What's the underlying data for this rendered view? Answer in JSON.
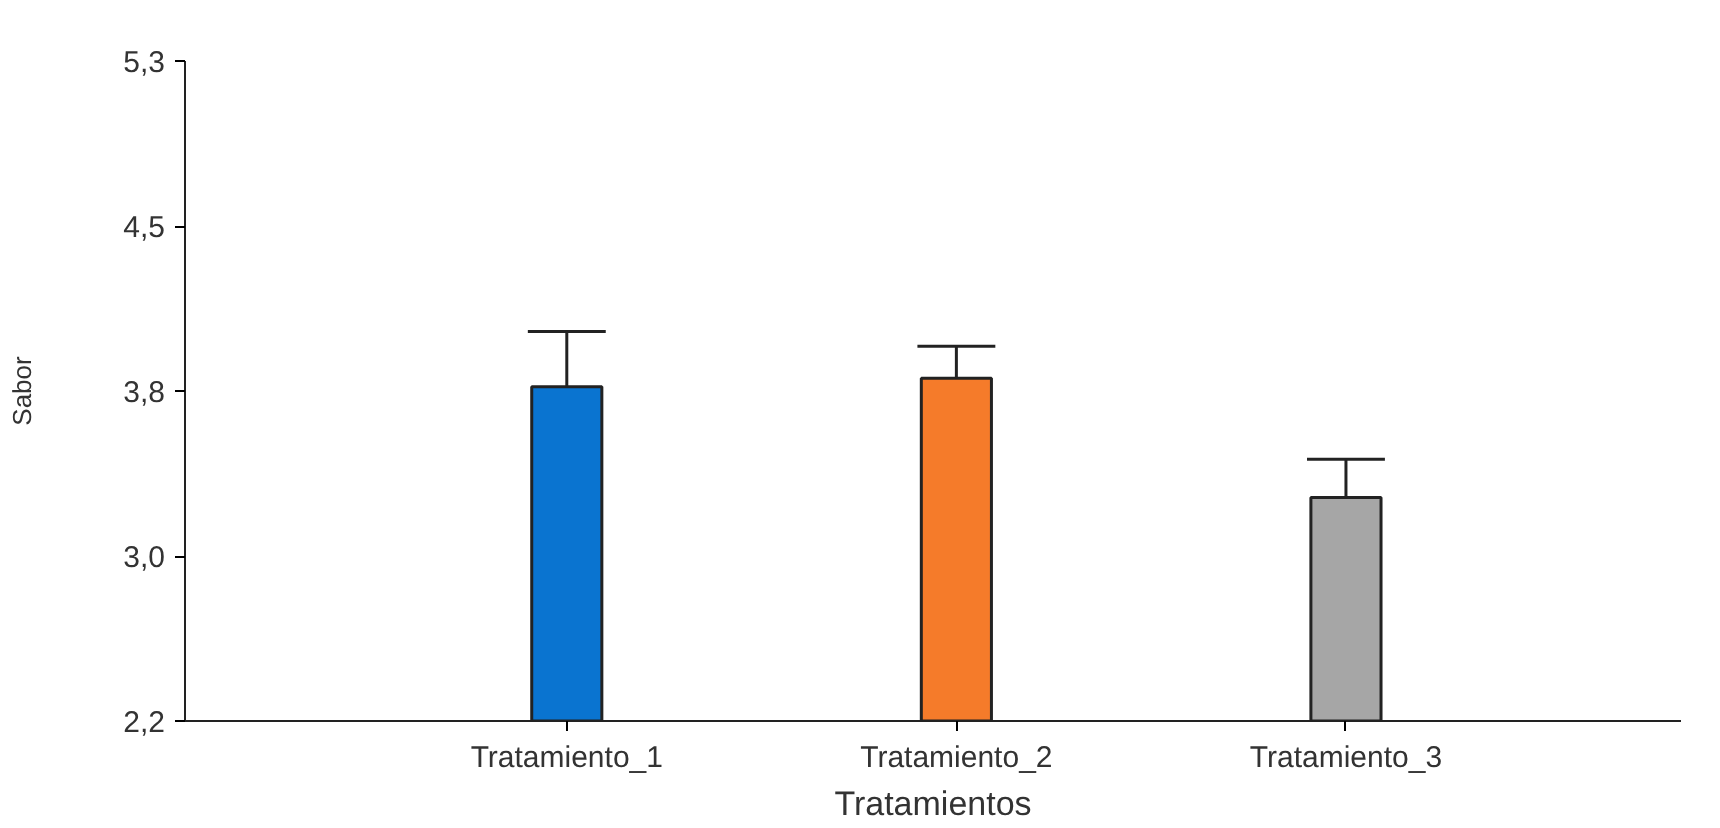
{
  "chart_data": {
    "type": "bar",
    "categories": [
      "Tratamiento_1",
      "Tratamiento_2",
      "Tratamiento_3"
    ],
    "values": [
      3.77,
      3.81,
      3.25
    ],
    "colors": [
      "#0a74d0",
      "#f57b2a",
      "#a6a6a6"
    ],
    "errors": [
      [
        3.77,
        4.03
      ],
      [
        3.81,
        3.96
      ],
      [
        3.25,
        3.43
      ]
    ],
    "xlabel": "Tratamientos",
    "ylabel": "Sabor",
    "ylim": [
      2.2,
      5.3
    ],
    "yticks": [
      {
        "value": 2.2,
        "label": "2,2"
      },
      {
        "value": 2.975,
        "label": "3,0"
      },
      {
        "value": 3.75,
        "label": "3,8"
      },
      {
        "value": 4.525,
        "label": "4,5"
      },
      {
        "value": 5.3,
        "label": "5,3"
      }
    ],
    "grid": false
  }
}
